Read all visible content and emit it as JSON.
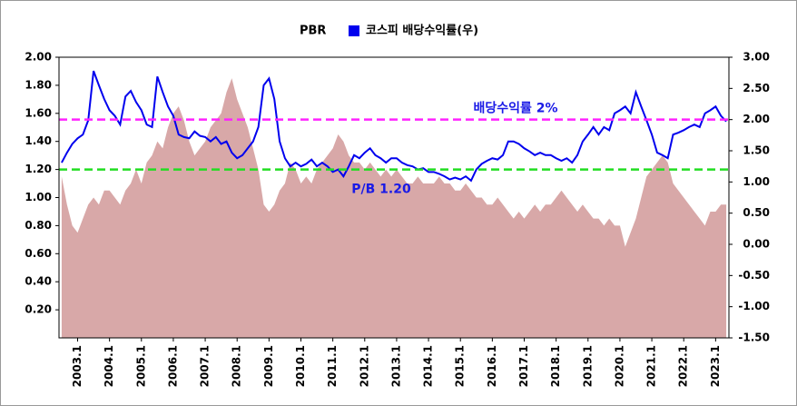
{
  "chart_data": {
    "type": "area_line",
    "categories": [
      null,
      null,
      null,
      "2003.1",
      null,
      null,
      null,
      null,
      null,
      "2004.1",
      null,
      null,
      null,
      null,
      null,
      "2005.1",
      null,
      null,
      null,
      null,
      null,
      "2006.1",
      null,
      null,
      null,
      null,
      null,
      "2007.1",
      null,
      null,
      null,
      null,
      null,
      "2008.1",
      null,
      null,
      null,
      null,
      null,
      "2009.1",
      null,
      null,
      null,
      null,
      null,
      "2010.1",
      null,
      null,
      null,
      null,
      null,
      "2011.1",
      null,
      null,
      null,
      null,
      null,
      "2012.1",
      null,
      null,
      null,
      null,
      null,
      "2013.1",
      null,
      null,
      null,
      null,
      null,
      "2014.1",
      null,
      null,
      null,
      null,
      null,
      "2015.1",
      null,
      null,
      null,
      null,
      null,
      "2016.1",
      null,
      null,
      null,
      null,
      null,
      "2017.1",
      null,
      null,
      null,
      null,
      null,
      "2018.1",
      null,
      null,
      null,
      null,
      null,
      "2019.1",
      null,
      null,
      null,
      null,
      null,
      "2020.1",
      null,
      null,
      null,
      null,
      null,
      "2021.1",
      null,
      null,
      null,
      null,
      null,
      "2022.1",
      null,
      null,
      null,
      null,
      null,
      "2023.1",
      null,
      null
    ],
    "series": [
      {
        "name": "PBR",
        "color": "#d8a8a8",
        "kind": "area",
        "axis": "y",
        "values": [
          1.15,
          0.95,
          0.8,
          0.75,
          0.85,
          0.95,
          1.0,
          0.95,
          1.05,
          1.05,
          1.0,
          0.95,
          1.05,
          1.1,
          1.2,
          1.1,
          1.25,
          1.3,
          1.4,
          1.35,
          1.5,
          1.6,
          1.65,
          1.55,
          1.4,
          1.3,
          1.35,
          1.4,
          1.5,
          1.55,
          1.6,
          1.75,
          1.85,
          1.7,
          1.6,
          1.5,
          1.35,
          1.2,
          0.95,
          0.9,
          0.95,
          1.05,
          1.1,
          1.25,
          1.2,
          1.1,
          1.15,
          1.1,
          1.2,
          1.25,
          1.3,
          1.35,
          1.45,
          1.4,
          1.3,
          1.25,
          1.25,
          1.2,
          1.25,
          1.2,
          1.15,
          1.2,
          1.15,
          1.2,
          1.15,
          1.1,
          1.1,
          1.15,
          1.1,
          1.1,
          1.1,
          1.15,
          1.1,
          1.1,
          1.05,
          1.05,
          1.1,
          1.05,
          1.0,
          1.0,
          0.95,
          0.95,
          1.0,
          0.95,
          0.9,
          0.85,
          0.9,
          0.85,
          0.9,
          0.95,
          0.9,
          0.95,
          0.95,
          1.0,
          1.05,
          1.0,
          0.95,
          0.9,
          0.95,
          0.9,
          0.85,
          0.85,
          0.8,
          0.85,
          0.8,
          0.8,
          0.65,
          0.75,
          0.85,
          1.0,
          1.15,
          1.2,
          1.25,
          1.3,
          1.25,
          1.1,
          1.05,
          1.0,
          0.95,
          0.9,
          0.85,
          0.8,
          0.9,
          0.9,
          0.95,
          0.95
        ]
      },
      {
        "name": "코스피 배당수익률(우)",
        "color": "#0000ee",
        "kind": "line",
        "axis": "y2",
        "values": [
          1.31,
          1.47,
          1.61,
          1.7,
          1.76,
          1.99,
          2.78,
          2.55,
          2.33,
          2.15,
          2.06,
          1.92,
          2.37,
          2.46,
          2.28,
          2.15,
          1.92,
          1.88,
          2.69,
          2.44,
          2.21,
          2.06,
          1.76,
          1.72,
          1.7,
          1.81,
          1.74,
          1.72,
          1.65,
          1.72,
          1.61,
          1.65,
          1.47,
          1.38,
          1.43,
          1.54,
          1.65,
          1.88,
          2.55,
          2.66,
          2.33,
          1.65,
          1.38,
          1.25,
          1.31,
          1.25,
          1.29,
          1.36,
          1.25,
          1.31,
          1.25,
          1.16,
          1.2,
          1.09,
          1.25,
          1.43,
          1.38,
          1.47,
          1.54,
          1.43,
          1.38,
          1.31,
          1.38,
          1.38,
          1.31,
          1.27,
          1.25,
          1.2,
          1.22,
          1.16,
          1.16,
          1.13,
          1.09,
          1.04,
          1.07,
          1.04,
          1.09,
          1.02,
          1.2,
          1.29,
          1.34,
          1.38,
          1.36,
          1.43,
          1.65,
          1.65,
          1.61,
          1.54,
          1.49,
          1.43,
          1.47,
          1.43,
          1.43,
          1.38,
          1.34,
          1.38,
          1.31,
          1.43,
          1.65,
          1.76,
          1.88,
          1.76,
          1.88,
          1.83,
          2.1,
          2.15,
          2.21,
          2.1,
          2.44,
          2.21,
          1.99,
          1.76,
          1.47,
          1.43,
          1.38,
          1.76,
          1.79,
          1.83,
          1.88,
          1.92,
          1.88,
          2.1,
          2.15,
          2.21,
          2.06,
          1.97
        ]
      }
    ],
    "ylim": [
      0,
      2.0
    ],
    "yticks": [
      {
        "value": 0.2,
        "label": "0.20"
      },
      {
        "value": 0.4,
        "label": "0.40"
      },
      {
        "value": 0.6,
        "label": "0.60"
      },
      {
        "value": 0.8,
        "label": "0.80"
      },
      {
        "value": 1.0,
        "label": "1.00"
      },
      {
        "value": 1.2,
        "label": "1.20"
      },
      {
        "value": 1.4,
        "label": "1.40"
      },
      {
        "value": 1.6,
        "label": "1.60"
      },
      {
        "value": 1.8,
        "label": "1.80"
      },
      {
        "value": 2.0,
        "label": "2.00"
      }
    ],
    "y2lim": [
      -1.5,
      3.0
    ],
    "y2ticks": [
      {
        "value": -1.5,
        "label": "-1.50"
      },
      {
        "value": -1.0,
        "label": "-1.00"
      },
      {
        "value": -0.5,
        "label": "-0.50"
      },
      {
        "value": 0,
        "label": "0.00"
      },
      {
        "value": 0.5,
        "label": "0.50"
      },
      {
        "value": 1.0,
        "label": "1.00"
      },
      {
        "value": 1.5,
        "label": "1.50"
      },
      {
        "value": 2.0,
        "label": "2.00"
      },
      {
        "value": 2.5,
        "label": "2.50"
      },
      {
        "value": 3.0,
        "label": "3.00"
      }
    ],
    "reference_lines": [
      {
        "label": "P/B 1.20",
        "value": 1.2,
        "axis": "y",
        "color": "#22dd22"
      },
      {
        "label": "배당수익률 2%",
        "value": 2,
        "axis": "y2",
        "color": "#ff22ff"
      }
    ],
    "grid": false
  }
}
